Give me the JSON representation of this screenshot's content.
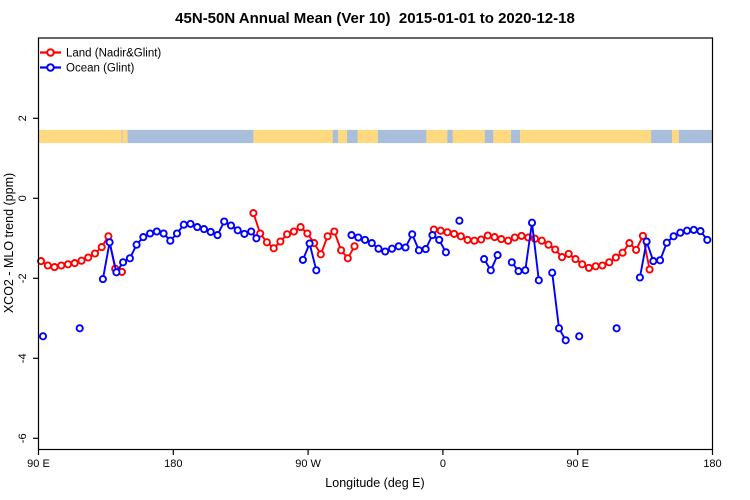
{
  "title": "45N-50N Annual Mean (Ver 10)  2015-01-01 to 2020-12-18",
  "legend": {
    "items": [
      {
        "label": "Land (Nadir&Glint)",
        "color": "#FF0000"
      },
      {
        "label": "Ocean (Glint)",
        "color": "#0000FF"
      }
    ]
  },
  "chart_data": {
    "type": "line",
    "title": "45N-50N Annual Mean (Ver 10)  2015-01-01 to 2020-12-18",
    "xlabel": "Longitude (deg E)",
    "ylabel": "XCO2 - MLO trend (ppm)",
    "xlim": [
      90,
      540
    ],
    "ylim": [
      -6.3,
      4.0
    ],
    "grid": false,
    "legend_position": "top-left",
    "xticks": [
      {
        "lon": 90,
        "label": "90 E"
      },
      {
        "lon": 180,
        "label": "180"
      },
      {
        "lon": 270,
        "label": "90 W"
      },
      {
        "lon": 360,
        "label": "0"
      },
      {
        "lon": 450,
        "label": "90 E"
      },
      {
        "lon": 540,
        "label": "180"
      }
    ],
    "yticks": [
      {
        "value": 2,
        "label": "2"
      },
      {
        "value": 0,
        "label": "0"
      },
      {
        "value": -2,
        "label": "-2"
      },
      {
        "value": -4,
        "label": "-4"
      },
      {
        "value": -6,
        "label": "-6"
      }
    ],
    "colors": {
      "land_series": "#FF0000",
      "ocean_series": "#0000FF",
      "band_land": "#FFD980",
      "band_ocean": "#A9BEDB",
      "axis": "#000000"
    },
    "band": {
      "top_value": 1.71,
      "bottom_value": 1.38,
      "segments": [
        {
          "from": 90,
          "to": 145.5,
          "surface": "land"
        },
        {
          "from": 145.5,
          "to": 233.5,
          "surface": "ocean"
        },
        {
          "from": 233.5,
          "to": 316.5,
          "surface": "land"
        },
        {
          "from": 316.5,
          "to": 349,
          "surface": "ocean"
        },
        {
          "from": 349,
          "to": 499,
          "surface": "land"
        },
        {
          "from": 499,
          "to": 513,
          "surface": "ocean"
        },
        {
          "from": 513,
          "to": 517.5,
          "surface": "land"
        },
        {
          "from": 517.5,
          "to": 540,
          "surface": "ocean"
        }
      ],
      "overlays": [
        {
          "from": 146,
          "to": 149.5,
          "surface": "land"
        },
        {
          "from": 286.5,
          "to": 290,
          "surface": "ocean"
        },
        {
          "from": 296,
          "to": 303,
          "surface": "ocean"
        },
        {
          "from": 363,
          "to": 366.5,
          "surface": "ocean"
        },
        {
          "from": 388,
          "to": 393.5,
          "surface": "ocean"
        },
        {
          "from": 405.5,
          "to": 411.5,
          "surface": "ocean"
        }
      ]
    },
    "series": [
      {
        "name": "Land (Nadir&Glint)",
        "color": "#FF0000",
        "runs": [
          [
            [
              91.7,
              -1.57
            ],
            [
              96.2,
              -1.68
            ],
            [
              100.7,
              -1.72
            ],
            [
              105.2,
              -1.68
            ],
            [
              109.7,
              -1.65
            ],
            [
              114.2,
              -1.62
            ],
            [
              118.7,
              -1.56
            ],
            [
              123.2,
              -1.48
            ],
            [
              127.7,
              -1.38
            ],
            [
              132.2,
              -1.22
            ],
            [
              136.7,
              -0.95
            ],
            [
              141.2,
              -1.76
            ],
            [
              145.7,
              -1.84
            ]
          ],
          [
            [
              233.5,
              -0.37
            ],
            [
              238,
              -0.88
            ],
            [
              242.5,
              -1.1
            ],
            [
              247,
              -1.25
            ],
            [
              251.5,
              -1.08
            ],
            [
              256,
              -0.9
            ],
            [
              260.5,
              -0.83
            ],
            [
              265,
              -0.72
            ],
            [
              269.5,
              -0.88
            ],
            [
              274,
              -1.12
            ],
            [
              278.5,
              -1.4
            ],
            [
              283,
              -0.95
            ],
            [
              287.5,
              -0.83
            ],
            [
              292,
              -1.3
            ],
            [
              296.5,
              -1.5
            ],
            [
              301,
              -1.2
            ]
          ],
          [
            [
              354,
              -0.78
            ],
            [
              358.5,
              -0.81
            ],
            [
              363,
              -0.85
            ],
            [
              367.5,
              -0.89
            ],
            [
              372,
              -0.95
            ],
            [
              376.5,
              -1.04
            ],
            [
              381,
              -1.06
            ],
            [
              385.5,
              -1.03
            ],
            [
              390,
              -0.93
            ],
            [
              394.5,
              -0.97
            ],
            [
              399,
              -1.02
            ],
            [
              403.5,
              -1.06
            ],
            [
              408,
              -0.98
            ],
            [
              412.5,
              -0.94
            ],
            [
              417,
              -0.98
            ],
            [
              421.5,
              -1.01
            ],
            [
              426,
              -1.06
            ],
            [
              430.5,
              -1.16
            ],
            [
              435,
              -1.28
            ],
            [
              439.5,
              -1.47
            ],
            [
              444,
              -1.39
            ],
            [
              448.5,
              -1.52
            ],
            [
              453,
              -1.65
            ],
            [
              457.5,
              -1.74
            ],
            [
              462,
              -1.7
            ],
            [
              466.5,
              -1.68
            ],
            [
              471,
              -1.6
            ],
            [
              475.5,
              -1.48
            ],
            [
              480,
              -1.36
            ],
            [
              484.5,
              -1.12
            ],
            [
              489,
              -1.29
            ],
            [
              493.5,
              -0.94
            ],
            [
              498,
              -1.78
            ]
          ]
        ]
      },
      {
        "name": "Ocean (Glint)",
        "color": "#0000FF",
        "runs": [
          [
            [
              93,
              -3.45
            ]
          ],
          [
            [
              117.5,
              -3.25
            ]
          ],
          [
            [
              133,
              -2.02
            ],
            [
              137.5,
              -1.1
            ],
            [
              142,
              -1.85
            ],
            [
              146.5,
              -1.6
            ],
            [
              151,
              -1.5
            ],
            [
              155.5,
              -1.16
            ],
            [
              160,
              -0.97
            ],
            [
              164.5,
              -0.88
            ],
            [
              169,
              -0.83
            ],
            [
              173.5,
              -0.88
            ],
            [
              178,
              -1.06
            ],
            [
              182.5,
              -0.88
            ],
            [
              187,
              -0.66
            ],
            [
              191.5,
              -0.64
            ],
            [
              196,
              -0.72
            ],
            [
              200.5,
              -0.77
            ],
            [
              205,
              -0.84
            ],
            [
              209.5,
              -0.92
            ],
            [
              214,
              -0.58
            ],
            [
              218.5,
              -0.68
            ],
            [
              223,
              -0.8
            ],
            [
              227.5,
              -0.89
            ],
            [
              232,
              -0.83
            ],
            [
              235.5,
              -1.0
            ]
          ],
          [
            [
              266.5,
              -1.54
            ],
            [
              271,
              -1.13
            ],
            [
              275.5,
              -1.8
            ]
          ],
          [
            [
              299,
              -0.92
            ],
            [
              303.5,
              -0.98
            ],
            [
              308,
              -1.04
            ],
            [
              312.5,
              -1.12
            ],
            [
              317,
              -1.26
            ],
            [
              321.5,
              -1.33
            ],
            [
              326,
              -1.26
            ],
            [
              330.5,
              -1.2
            ],
            [
              335,
              -1.23
            ],
            [
              339.5,
              -0.9
            ],
            [
              344,
              -1.3
            ],
            [
              348.5,
              -1.27
            ],
            [
              353,
              -0.92
            ],
            [
              357.5,
              -1.04
            ],
            [
              362,
              -1.35
            ]
          ],
          [
            [
              371,
              -0.56
            ]
          ],
          [
            [
              387.5,
              -1.52
            ],
            [
              392,
              -1.8
            ],
            [
              396.5,
              -1.42
            ]
          ],
          [
            [
              406,
              -1.6
            ],
            [
              410.5,
              -1.82
            ],
            [
              415,
              -1.8
            ],
            [
              419.5,
              -0.61
            ],
            [
              424,
              -2.05
            ]
          ],
          [
            [
              433,
              -1.86
            ],
            [
              437.5,
              -3.25
            ],
            [
              442,
              -3.55
            ]
          ],
          [
            [
              451,
              -3.45
            ]
          ],
          [
            [
              476,
              -3.25
            ]
          ],
          [
            [
              491.5,
              -1.98
            ],
            [
              496,
              -1.08
            ],
            [
              500.5,
              -1.57
            ],
            [
              505,
              -1.55
            ],
            [
              509.5,
              -1.11
            ],
            [
              514,
              -0.95
            ],
            [
              518.5,
              -0.86
            ],
            [
              523,
              -0.81
            ],
            [
              527.5,
              -0.79
            ],
            [
              532,
              -0.82
            ],
            [
              536.5,
              -1.04
            ]
          ]
        ]
      }
    ]
  }
}
